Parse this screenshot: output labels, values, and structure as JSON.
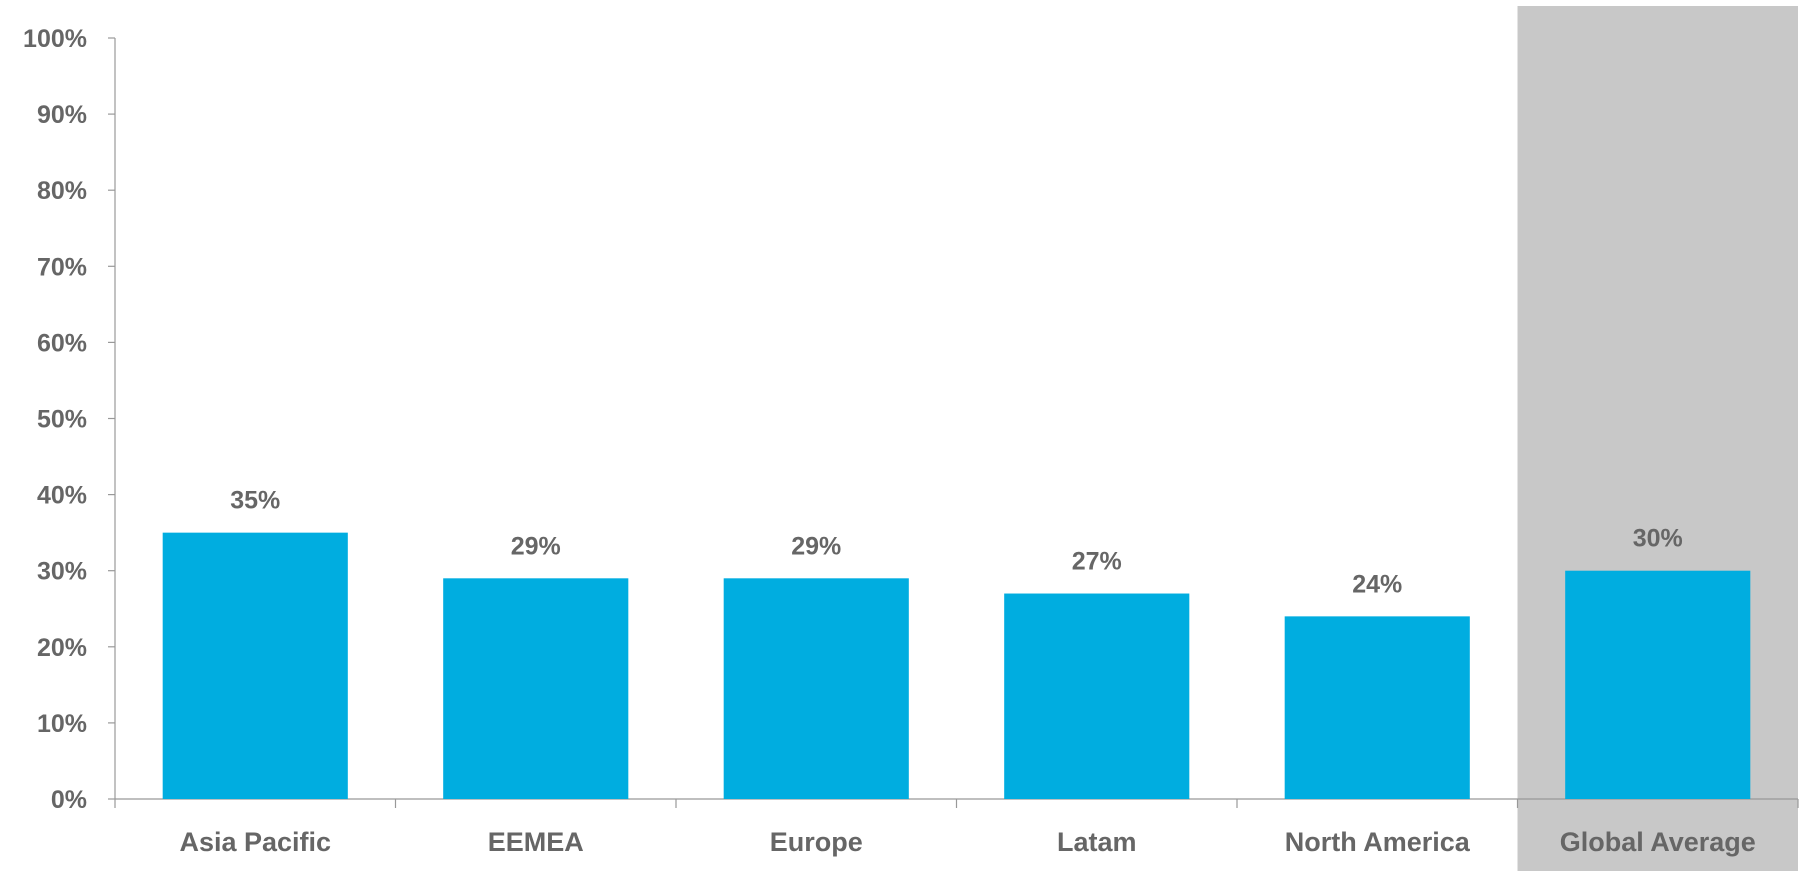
{
  "chart_data": {
    "type": "bar",
    "title": "",
    "xlabel": "",
    "ylabel": "",
    "categories": [
      "Asia Pacific",
      "EEMEA",
      "Europe",
      "Latam",
      "North America",
      "Global Average"
    ],
    "values": [
      35,
      29,
      29,
      27,
      24,
      30
    ],
    "value_labels": [
      "35%",
      "29%",
      "29%",
      "27%",
      "24%",
      "30%"
    ],
    "ylim": [
      0,
      100
    ],
    "yticks": [
      0,
      10,
      20,
      30,
      40,
      50,
      60,
      70,
      80,
      90,
      100
    ],
    "ytick_labels": [
      "0%",
      "10%",
      "20%",
      "30%",
      "40%",
      "50%",
      "60%",
      "70%",
      "80%",
      "90%",
      "100%"
    ],
    "highlighted_category": "Global Average",
    "grid": false,
    "legend": "none",
    "colors": {
      "bar": "#00ADE0",
      "highlight_band": "#C8C8C8",
      "text": "#666666",
      "axis": "#999999",
      "title_accent": "#00ADE0"
    }
  }
}
